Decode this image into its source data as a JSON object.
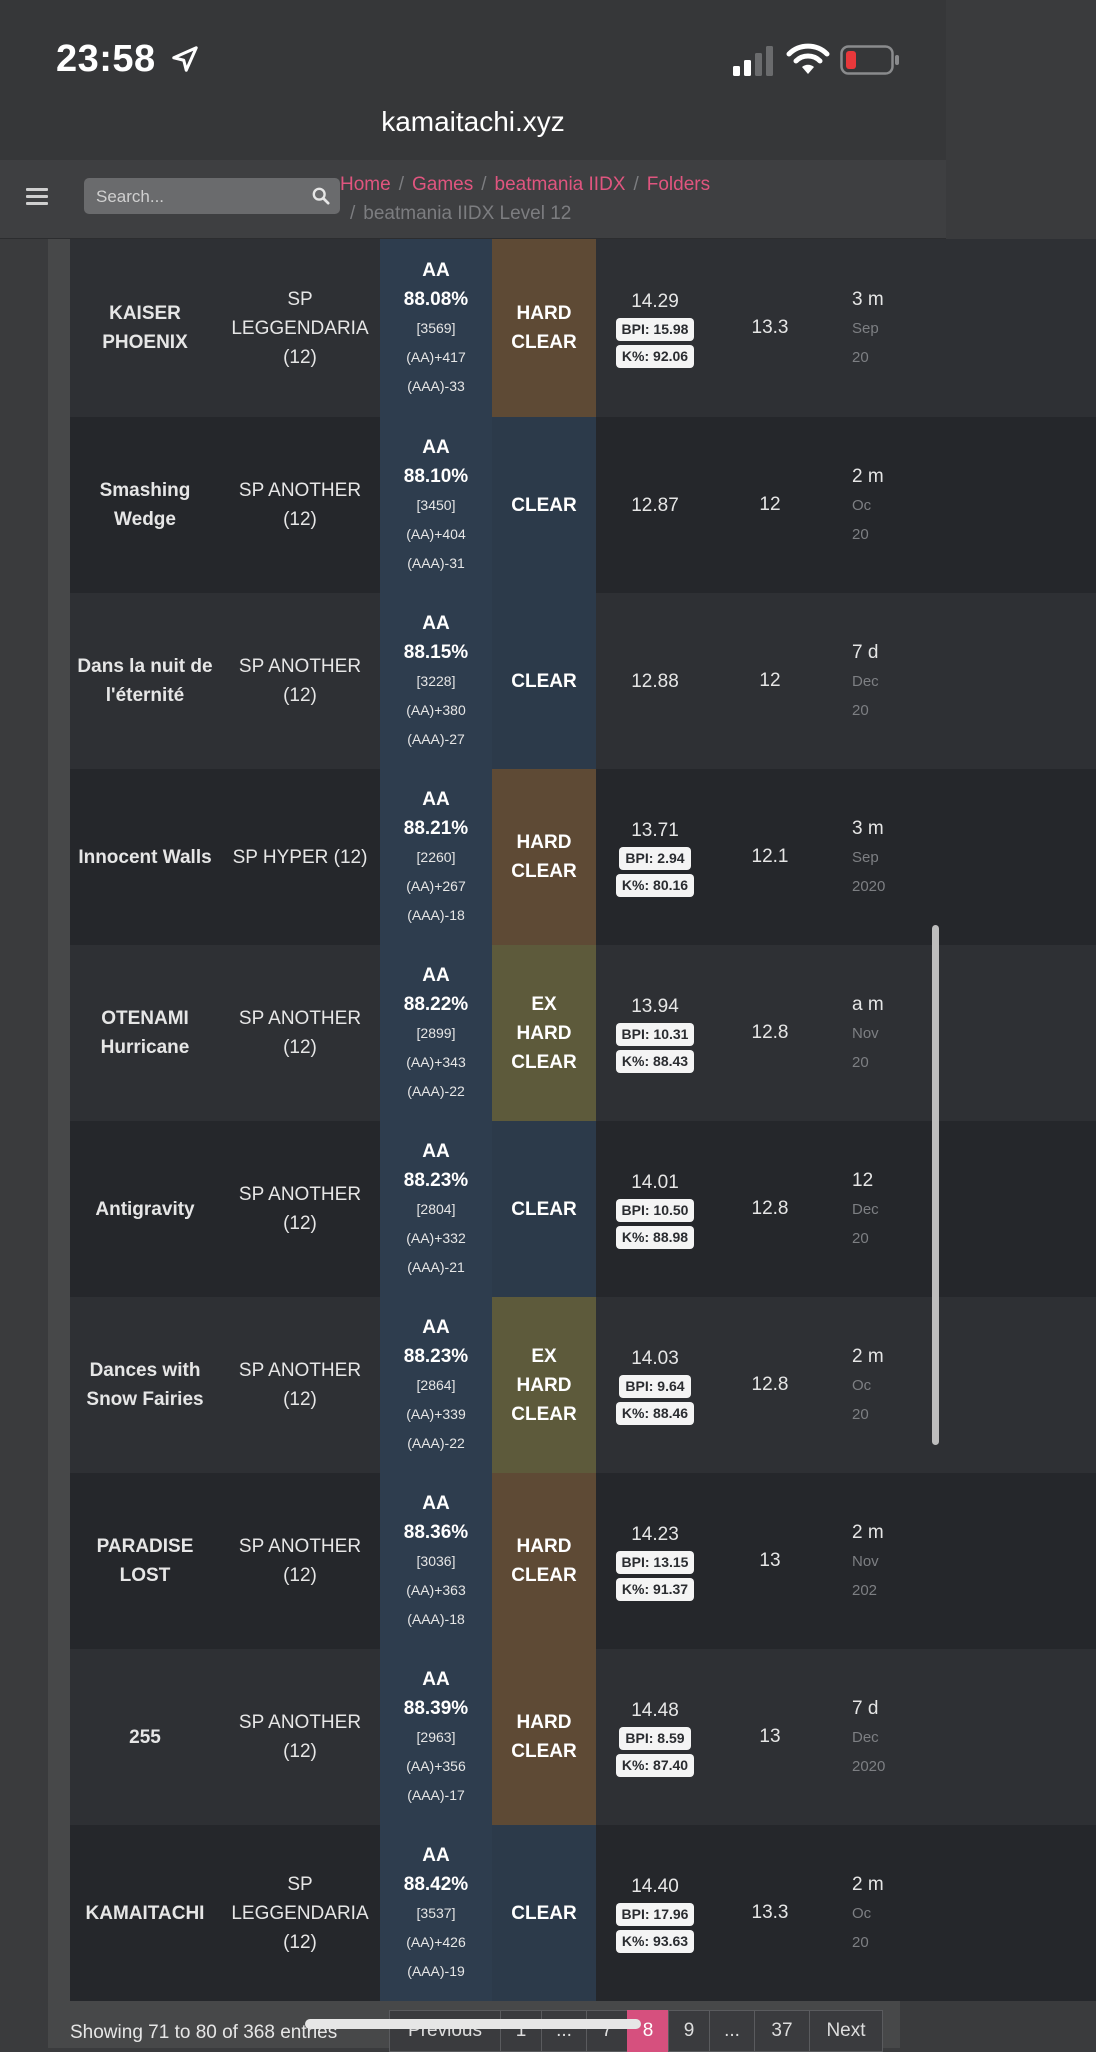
{
  "status": {
    "time": "23:58"
  },
  "browser": {
    "url": "kamaitachi.xyz"
  },
  "nav": {
    "search_placeholder": "Search...",
    "breadcrumbs": [
      "Home",
      "Games",
      "beatmania IIDX",
      "Folders"
    ],
    "current": "beatmania IIDX Level 12"
  },
  "rows": [
    {
      "song": "KAISER PHOENIX",
      "chart": "SP LEGGENDARIA (12)",
      "grade": "AA",
      "percent": "88.08%",
      "exscore": "[3569]",
      "aa_diff": "(AA)+417",
      "aaa_diff": "(AAA)-33",
      "lamp": "HARD CLEAR",
      "lamp_type": "hard",
      "rating": "14.29",
      "bpi": "BPI: 15.98",
      "kpct": "K%: 92.06",
      "level": "13.3",
      "date_rel": "3 m",
      "date_abs": "Sep",
      "date_year": "20"
    },
    {
      "song": "Smashing Wedge",
      "chart": "SP ANOTHER (12)",
      "grade": "AA",
      "percent": "88.10%",
      "exscore": "[3450]",
      "aa_diff": "(AA)+404",
      "aaa_diff": "(AAA)-31",
      "lamp": "CLEAR",
      "lamp_type": "clear",
      "rating": "12.87",
      "bpi": "",
      "kpct": "",
      "level": "12",
      "date_rel": "2 m",
      "date_abs": "Oc",
      "date_year": "20"
    },
    {
      "song": "Dans la nuit de l'éternité",
      "chart": "SP ANOTHER (12)",
      "grade": "AA",
      "percent": "88.15%",
      "exscore": "[3228]",
      "aa_diff": "(AA)+380",
      "aaa_diff": "(AAA)-27",
      "lamp": "CLEAR",
      "lamp_type": "clear",
      "rating": "12.88",
      "bpi": "",
      "kpct": "",
      "level": "12",
      "date_rel": "7 d",
      "date_abs": "Dec",
      "date_year": "20"
    },
    {
      "song": "Innocent Walls",
      "chart": "SP HYPER (12)",
      "grade": "AA",
      "percent": "88.21%",
      "exscore": "[2260]",
      "aa_diff": "(AA)+267",
      "aaa_diff": "(AAA)-18",
      "lamp": "HARD CLEAR",
      "lamp_type": "hard",
      "rating": "13.71",
      "bpi": "BPI: 2.94",
      "kpct": "K%: 80.16",
      "level": "12.1",
      "date_rel": "3 m",
      "date_abs": "Sep",
      "date_year": "2020"
    },
    {
      "song": "OTENAMI Hurricane",
      "chart": "SP ANOTHER (12)",
      "grade": "AA",
      "percent": "88.22%",
      "exscore": "[2899]",
      "aa_diff": "(AA)+343",
      "aaa_diff": "(AAA)-22",
      "lamp": "EX HARD CLEAR",
      "lamp_type": "exhard",
      "rating": "13.94",
      "bpi": "BPI: 10.31",
      "kpct": "K%: 88.43",
      "level": "12.8",
      "date_rel": "a m",
      "date_abs": "Nov",
      "date_year": "20"
    },
    {
      "song": "Antigravity",
      "chart": "SP ANOTHER (12)",
      "grade": "AA",
      "percent": "88.23%",
      "exscore": "[2804]",
      "aa_diff": "(AA)+332",
      "aaa_diff": "(AAA)-21",
      "lamp": "CLEAR",
      "lamp_type": "clear",
      "rating": "14.01",
      "bpi": "BPI: 10.50",
      "kpct": "K%: 88.98",
      "level": "12.8",
      "date_rel": "12",
      "date_abs": "Dec",
      "date_year": "20"
    },
    {
      "song": "Dances with Snow Fairies",
      "chart": "SP ANOTHER (12)",
      "grade": "AA",
      "percent": "88.23%",
      "exscore": "[2864]",
      "aa_diff": "(AA)+339",
      "aaa_diff": "(AAA)-22",
      "lamp": "EX HARD CLEAR",
      "lamp_type": "exhard",
      "rating": "14.03",
      "bpi": "BPI: 9.64",
      "kpct": "K%: 88.46",
      "level": "12.8",
      "date_rel": "2 m",
      "date_abs": "Oc",
      "date_year": "20"
    },
    {
      "song": "PARADISE LOST",
      "chart": "SP ANOTHER (12)",
      "grade": "AA",
      "percent": "88.36%",
      "exscore": "[3036]",
      "aa_diff": "(AA)+363",
      "aaa_diff": "(AAA)-18",
      "lamp": "HARD CLEAR",
      "lamp_type": "hard",
      "rating": "14.23",
      "bpi": "BPI: 13.15",
      "kpct": "K%: 91.37",
      "level": "13",
      "date_rel": "2 m",
      "date_abs": "Nov",
      "date_year": "202"
    },
    {
      "song": "255",
      "chart": "SP ANOTHER (12)",
      "grade": "AA",
      "percent": "88.39%",
      "exscore": "[2963]",
      "aa_diff": "(AA)+356",
      "aaa_diff": "(AAA)-17",
      "lamp": "HARD CLEAR",
      "lamp_type": "hard",
      "rating": "14.48",
      "bpi": "BPI: 8.59",
      "kpct": "K%: 87.40",
      "level": "13",
      "date_rel": "7 d",
      "date_abs": "Dec",
      "date_year": "2020"
    },
    {
      "song": "KAMAITACHI",
      "chart": "SP LEGGENDARIA (12)",
      "grade": "AA",
      "percent": "88.42%",
      "exscore": "[3537]",
      "aa_diff": "(AA)+426",
      "aaa_diff": "(AAA)-19",
      "lamp": "CLEAR",
      "lamp_type": "clear",
      "rating": "14.40",
      "bpi": "BPI: 17.96",
      "kpct": "K%: 93.63",
      "level": "13.3",
      "date_rel": "2 m",
      "date_abs": "Oc",
      "date_year": "20"
    }
  ],
  "footer": {
    "showing": "Showing 71 to 80 of 368 entries",
    "pages": [
      "Previous",
      "1",
      "...",
      "7",
      "8",
      "9",
      "...",
      "37",
      "Next"
    ],
    "active_page": "8"
  },
  "colors": {
    "accent": "#d6507e",
    "lamp_hard": "#5e4a35",
    "lamp_exhard": "#5d5a3b",
    "lamp_clear": "#2c3a4a"
  }
}
